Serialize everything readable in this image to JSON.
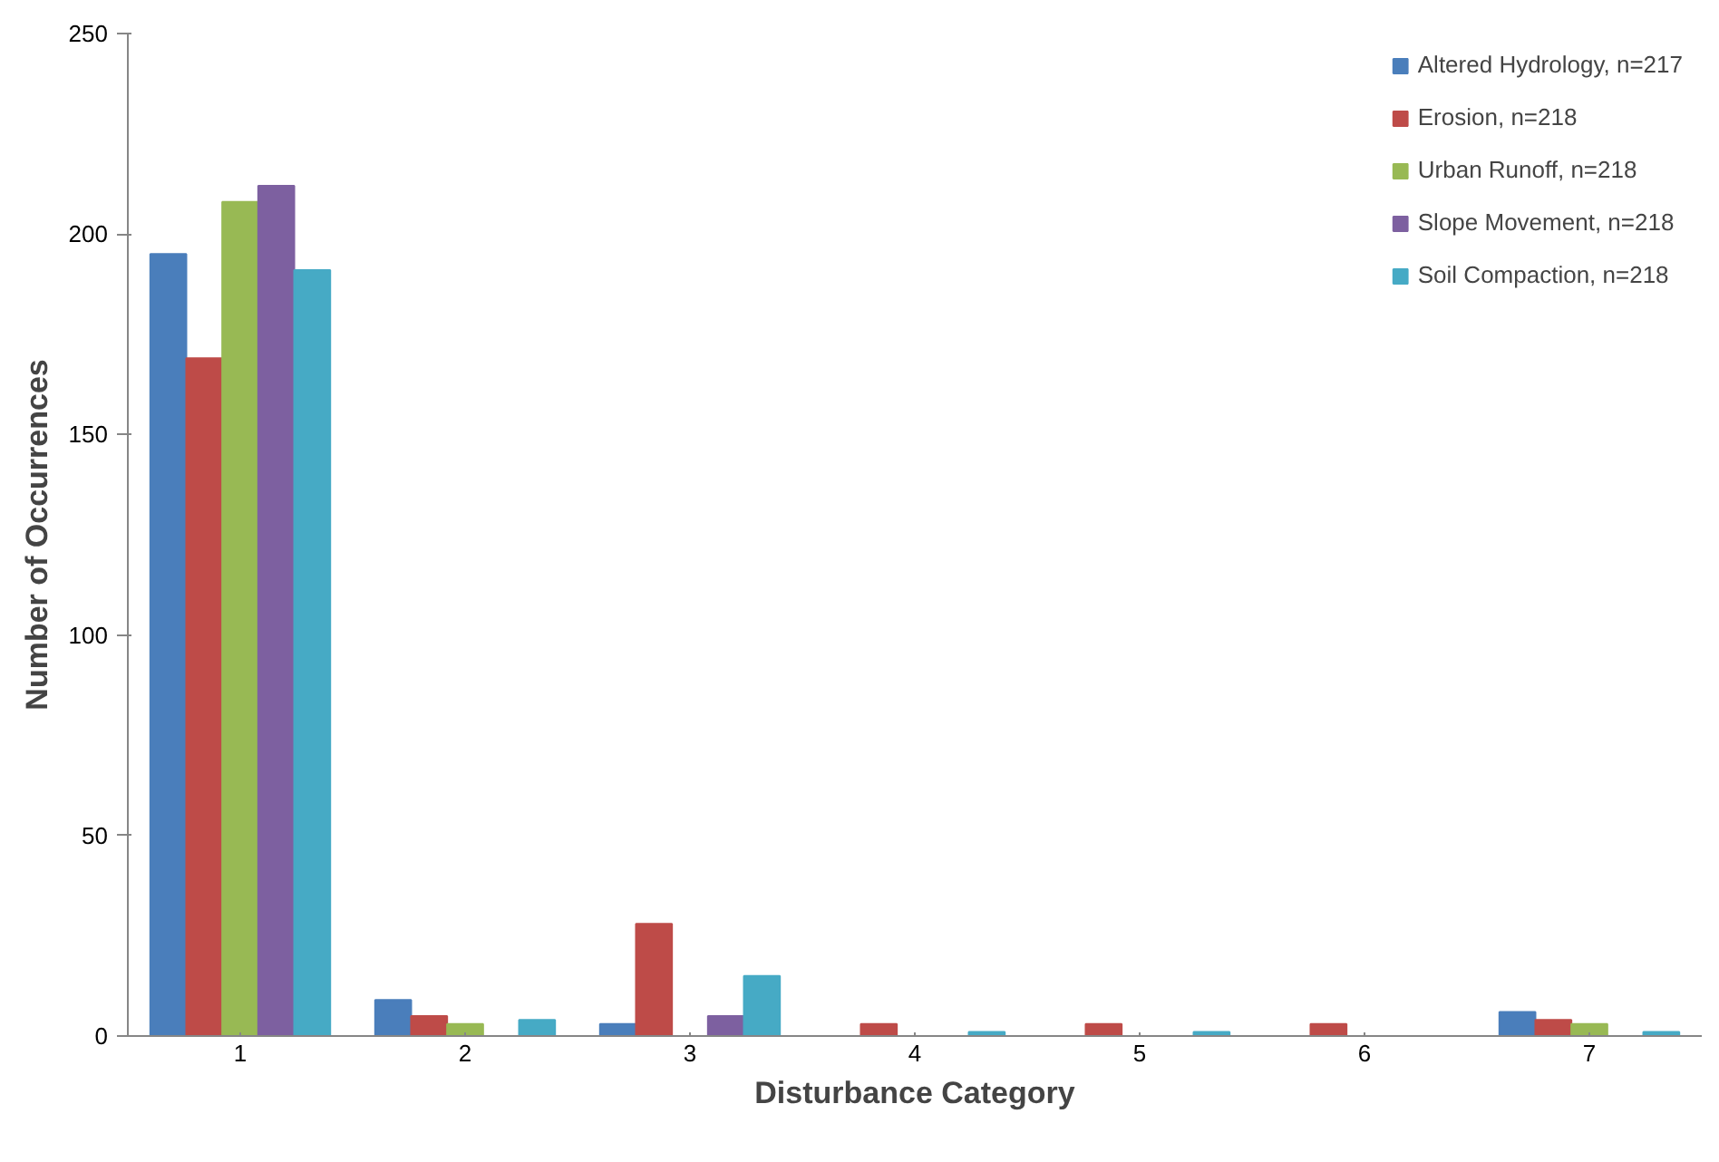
{
  "chart_data": {
    "type": "bar",
    "xlabel": "Disturbance Category",
    "ylabel": "Number of Occurrences",
    "categories": [
      "1",
      "2",
      "3",
      "4",
      "5",
      "6",
      "7"
    ],
    "series": [
      {
        "name": "Altered Hydrology, n=217",
        "color": "#4a7ebb",
        "values": [
          195,
          9,
          3,
          0,
          0,
          0,
          6
        ]
      },
      {
        "name": "Erosion, n=218",
        "color": "#be4b48",
        "values": [
          169,
          5,
          28,
          3,
          3,
          3,
          4
        ]
      },
      {
        "name": "Urban Runoff, n=218",
        "color": "#98b954",
        "values": [
          208,
          3,
          0,
          0,
          0,
          0,
          3
        ]
      },
      {
        "name": "Slope Movement, n=218",
        "color": "#7d60a0",
        "values": [
          212,
          0,
          5,
          0,
          0,
          0,
          0
        ]
      },
      {
        "name": "Soil Compaction, n=218",
        "color": "#46aac5",
        "values": [
          191,
          4,
          15,
          1,
          1,
          0,
          1
        ]
      }
    ],
    "ylim": [
      0,
      250
    ],
    "yticks": [
      0,
      50,
      100,
      150,
      200,
      250
    ],
    "grid": false,
    "legend": "top right"
  }
}
